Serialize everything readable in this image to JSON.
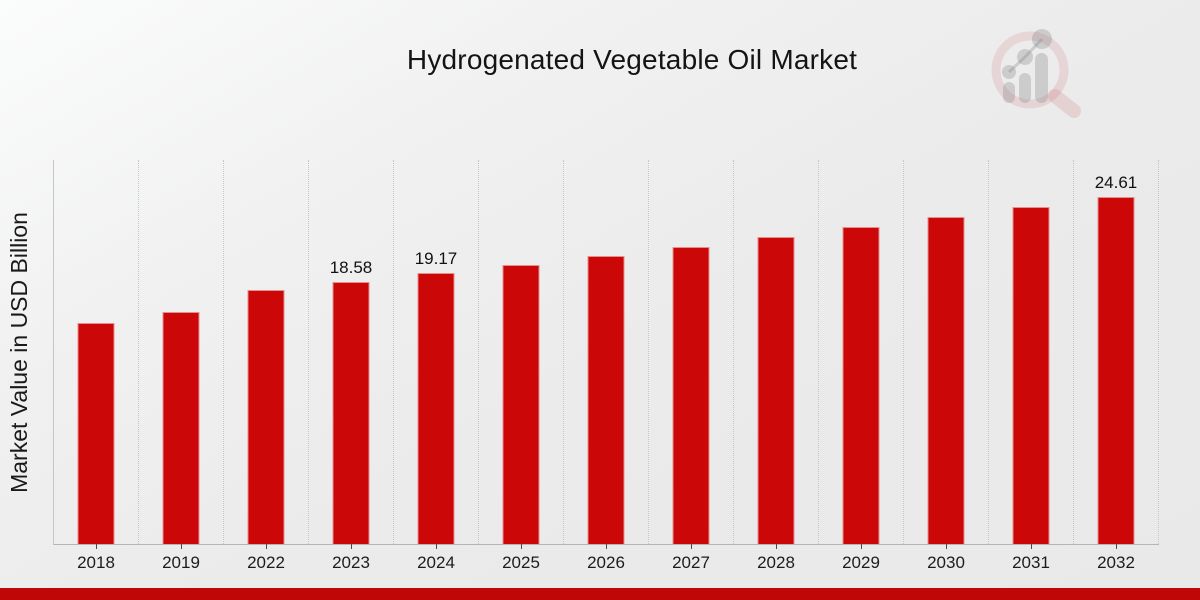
{
  "header": {
    "title": "Hydrogenated Vegetable Oil Market"
  },
  "watermark": {
    "icon": "magnifier-bar-chart-logo",
    "ring_color": "rgba(198,94,100,0.16)",
    "glyph_color": "rgba(128,128,134,0.30)"
  },
  "colors": {
    "bar": "#cb0707",
    "footer_strip": "#c00707",
    "axis_line": "#b5b5b5",
    "gridline": "#c7c7c7",
    "text": "#161616"
  },
  "chart_data": {
    "type": "bar",
    "title": "Hydrogenated Vegetable Oil Market",
    "xlabel": "",
    "ylabel": "Market Value in USD Billion",
    "categories": [
      "2018",
      "2019",
      "2022",
      "2023",
      "2024",
      "2025",
      "2026",
      "2027",
      "2028",
      "2029",
      "2030",
      "2031",
      "2032"
    ],
    "values": [
      15.66,
      16.43,
      18.01,
      18.58,
      19.17,
      19.78,
      20.41,
      21.06,
      21.73,
      22.42,
      23.13,
      23.86,
      24.61
    ],
    "value_labels": [
      null,
      null,
      null,
      "18.58",
      "19.17",
      null,
      null,
      null,
      null,
      null,
      null,
      null,
      "24.61"
    ],
    "ylim": [
      0,
      27.2
    ],
    "grid": "vertical dotted lines at category boundaries",
    "legend": "none",
    "bar_color": "#cb0707"
  }
}
